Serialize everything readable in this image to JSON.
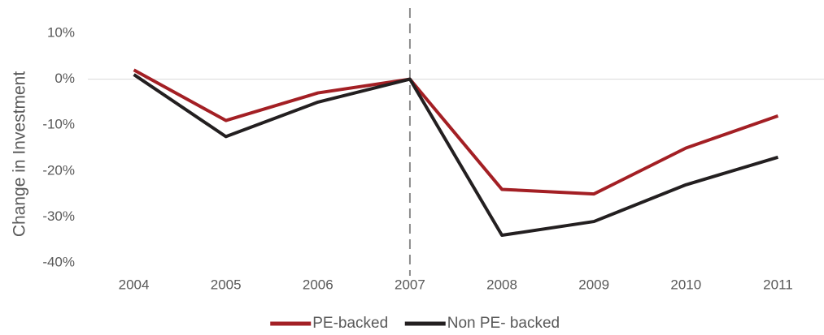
{
  "chart_data": {
    "type": "line",
    "y_label": "Change in Investment",
    "categories": [
      "2004",
      "2005",
      "2006",
      "2007",
      "2008",
      "2009",
      "2010",
      "2011"
    ],
    "series": [
      {
        "name": "PE-backed",
        "color": "#a31f24",
        "values": [
          2,
          -9,
          -3,
          0,
          -24,
          -25,
          -15,
          -8
        ]
      },
      {
        "name": "Non PE- backed",
        "color": "#231f20",
        "values": [
          1,
          -12.5,
          -5,
          0,
          -34,
          -31,
          -23,
          -17
        ]
      }
    ],
    "ylim": [
      -40,
      10
    ],
    "yticks": [
      {
        "value": -40,
        "label": "-40%"
      },
      {
        "value": -30,
        "label": "-30%"
      },
      {
        "value": -20,
        "label": "-20%"
      },
      {
        "value": -10,
        "label": "-10%"
      },
      {
        "value": 0,
        "label": "0%"
      },
      {
        "value": 10,
        "label": "10%"
      }
    ],
    "vline": "2007",
    "legend": "bottom"
  }
}
